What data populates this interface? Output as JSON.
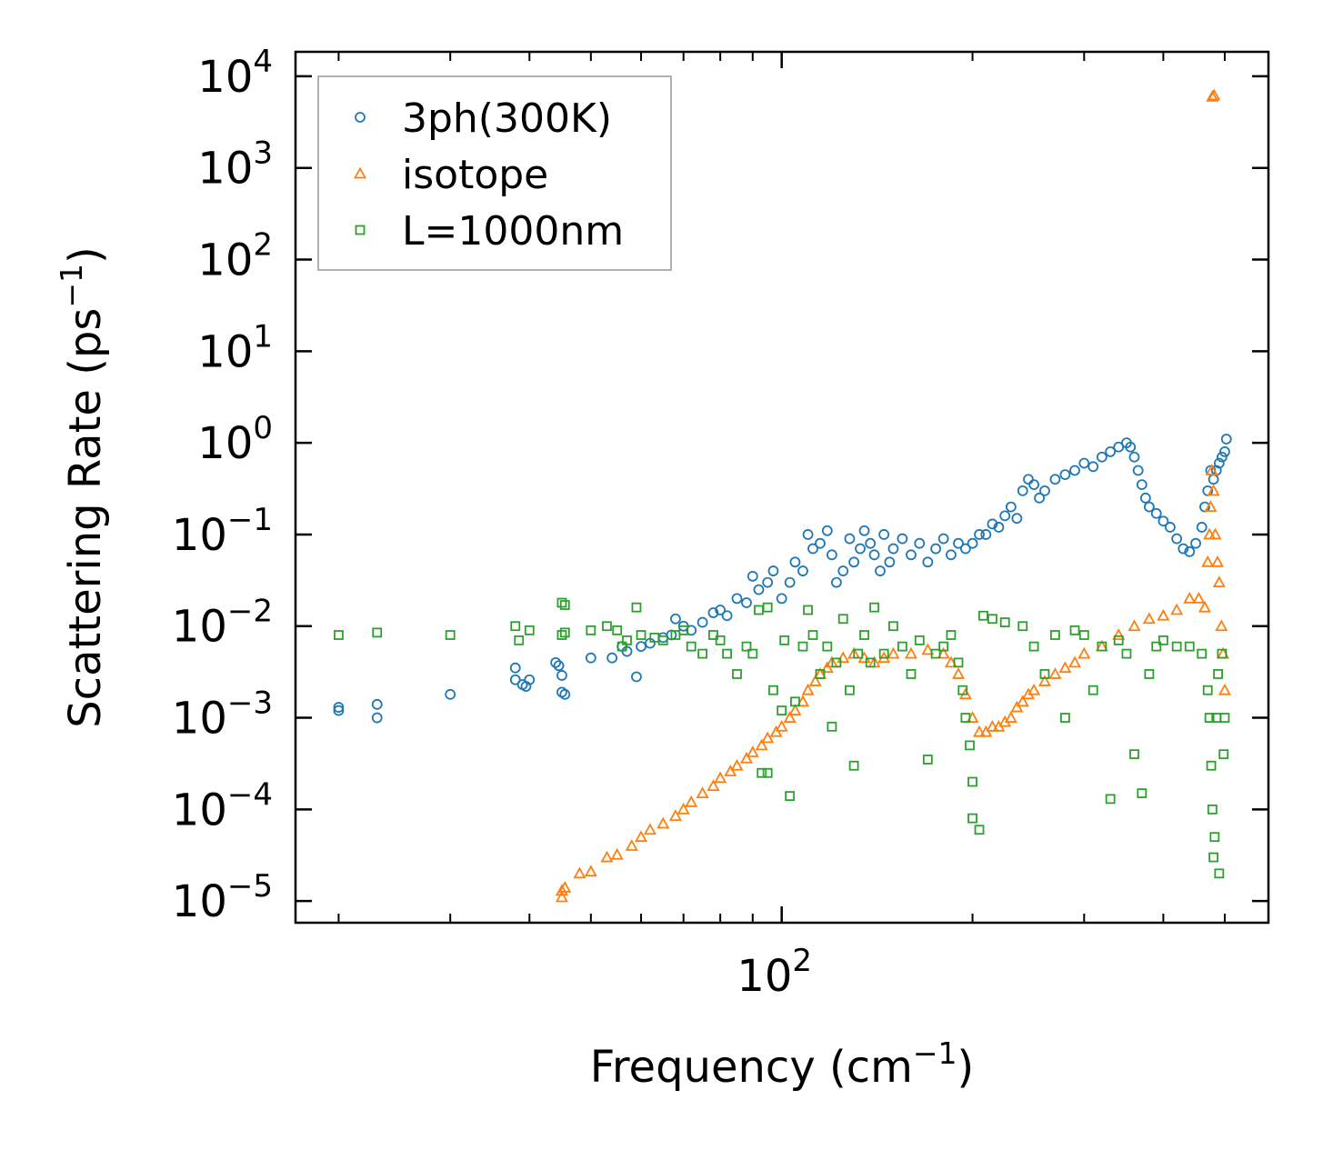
{
  "chart_data": {
    "type": "scatter",
    "xscale": "log",
    "yscale": "log",
    "xlabel": "Frequency (cm",
    "xlabel_sup": "−1",
    "xlabel_end": ")",
    "ylabel": "Scattering Rate (ps",
    "ylabel_sup": "−1",
    "ylabel_end": ")",
    "xlim": [
      17.1,
      586
    ],
    "ylim": [
      5.8e-06,
      18500
    ],
    "x_major_ticks": [
      {
        "value": 100,
        "base": "10",
        "exp": "2"
      }
    ],
    "x_minor_ticks": [
      20,
      30,
      40,
      50,
      60,
      70,
      80,
      90,
      200,
      300,
      400,
      500
    ],
    "y_major_ticks": [
      {
        "value": 10000.0,
        "base": "10",
        "exp": "4"
      },
      {
        "value": 1000.0,
        "base": "10",
        "exp": "3"
      },
      {
        "value": 100.0,
        "base": "10",
        "exp": "2"
      },
      {
        "value": 10.0,
        "base": "10",
        "exp": "1"
      },
      {
        "value": 1.0,
        "base": "10",
        "exp": "0"
      },
      {
        "value": 0.1,
        "base": "10",
        "exp": "−1"
      },
      {
        "value": 0.01,
        "base": "10",
        "exp": "−2"
      },
      {
        "value": 0.001,
        "base": "10",
        "exp": "−3"
      },
      {
        "value": 0.0001,
        "base": "10",
        "exp": "−4"
      },
      {
        "value": 1e-05,
        "base": "10",
        "exp": "−5"
      }
    ],
    "legend_position": "top-left",
    "grid": false,
    "series": [
      {
        "name": "3ph(300K)",
        "marker": "circle",
        "color": "#1f77b4",
        "points": [
          [
            20,
            0.0012
          ],
          [
            20,
            0.0013
          ],
          [
            23,
            0.0014
          ],
          [
            23,
            0.001
          ],
          [
            30,
            0.0018
          ],
          [
            38,
            0.0035
          ],
          [
            38,
            0.0026
          ],
          [
            39,
            0.0023
          ],
          [
            39.5,
            0.0022
          ],
          [
            40,
            0.0026
          ],
          [
            44,
            0.004
          ],
          [
            44.5,
            0.0037
          ],
          [
            45,
            0.0029
          ],
          [
            45,
            0.0019
          ],
          [
            45.5,
            0.0018
          ],
          [
            50,
            0.0045
          ],
          [
            54,
            0.0045
          ],
          [
            56,
            0.006
          ],
          [
            57,
            0.0053
          ],
          [
            59,
            0.0028
          ],
          [
            60,
            0.006
          ],
          [
            62,
            0.0065
          ],
          [
            65,
            0.0075
          ],
          [
            67,
            0.008
          ],
          [
            68,
            0.012
          ],
          [
            70,
            0.01
          ],
          [
            72,
            0.009
          ],
          [
            75,
            0.011
          ],
          [
            78,
            0.014
          ],
          [
            80,
            0.015
          ],
          [
            82,
            0.013
          ],
          [
            85,
            0.02
          ],
          [
            88,
            0.018
          ],
          [
            90,
            0.035
          ],
          [
            92,
            0.025
          ],
          [
            95,
            0.03
          ],
          [
            97,
            0.04
          ],
          [
            100,
            0.02
          ],
          [
            103,
            0.03
          ],
          [
            105,
            0.05
          ],
          [
            108,
            0.04
          ],
          [
            110,
            0.1
          ],
          [
            112,
            0.07
          ],
          [
            115,
            0.08
          ],
          [
            118,
            0.11
          ],
          [
            120,
            0.06
          ],
          [
            122,
            0.03
          ],
          [
            125,
            0.04
          ],
          [
            128,
            0.09
          ],
          [
            130,
            0.05
          ],
          [
            133,
            0.07
          ],
          [
            135,
            0.11
          ],
          [
            138,
            0.08
          ],
          [
            140,
            0.06
          ],
          [
            143,
            0.04
          ],
          [
            145,
            0.1
          ],
          [
            148,
            0.05
          ],
          [
            150,
            0.07
          ],
          [
            155,
            0.09
          ],
          [
            160,
            0.06
          ],
          [
            165,
            0.08
          ],
          [
            170,
            0.05
          ],
          [
            175,
            0.07
          ],
          [
            180,
            0.09
          ],
          [
            185,
            0.06
          ],
          [
            190,
            0.08
          ],
          [
            195,
            0.07
          ],
          [
            200,
            0.08
          ],
          [
            205,
            0.1
          ],
          [
            210,
            0.1
          ],
          [
            215,
            0.13
          ],
          [
            220,
            0.12
          ],
          [
            225,
            0.16
          ],
          [
            230,
            0.2
          ],
          [
            235,
            0.15
          ],
          [
            240,
            0.3
          ],
          [
            245,
            0.4
          ],
          [
            250,
            0.35
          ],
          [
            255,
            0.25
          ],
          [
            260,
            0.3
          ],
          [
            270,
            0.4
          ],
          [
            280,
            0.45
          ],
          [
            290,
            0.5
          ],
          [
            300,
            0.6
          ],
          [
            310,
            0.55
          ],
          [
            320,
            0.7
          ],
          [
            330,
            0.8
          ],
          [
            340,
            0.9
          ],
          [
            350,
            1.0
          ],
          [
            355,
            0.9
          ],
          [
            360,
            0.7
          ],
          [
            365,
            0.5
          ],
          [
            370,
            0.35
          ],
          [
            375,
            0.25
          ],
          [
            380,
            0.2
          ],
          [
            390,
            0.17
          ],
          [
            400,
            0.14
          ],
          [
            410,
            0.12
          ],
          [
            420,
            0.09
          ],
          [
            430,
            0.07
          ],
          [
            440,
            0.065
          ],
          [
            450,
            0.08
          ],
          [
            460,
            0.12
          ],
          [
            465,
            0.2
          ],
          [
            470,
            0.3
          ],
          [
            475,
            0.5
          ],
          [
            480,
            0.4
          ],
          [
            485,
            0.5
          ],
          [
            490,
            0.6
          ],
          [
            495,
            0.7
          ],
          [
            500,
            0.8
          ],
          [
            503,
            1.1
          ]
        ]
      },
      {
        "name": "isotope",
        "marker": "triangle",
        "color": "#ff7f0e",
        "points": [
          [
            45,
            1.3e-05
          ],
          [
            45,
            1.1e-05
          ],
          [
            45.5,
            1.4e-05
          ],
          [
            48,
            2e-05
          ],
          [
            50,
            2.1e-05
          ],
          [
            53,
            3e-05
          ],
          [
            55,
            3.2e-05
          ],
          [
            58,
            4e-05
          ],
          [
            60,
            5e-05
          ],
          [
            62,
            6e-05
          ],
          [
            65,
            7e-05
          ],
          [
            68,
            8.5e-05
          ],
          [
            70,
            0.0001
          ],
          [
            72,
            0.00012
          ],
          [
            75,
            0.00015
          ],
          [
            78,
            0.00018
          ],
          [
            80,
            0.00022
          ],
          [
            83,
            0.00026
          ],
          [
            85,
            0.0003
          ],
          [
            88,
            0.00036
          ],
          [
            90,
            0.00042
          ],
          [
            93,
            0.0005
          ],
          [
            95,
            0.0006
          ],
          [
            98,
            0.0007
          ],
          [
            100,
            0.0008
          ],
          [
            103,
            0.001
          ],
          [
            105,
            0.0012
          ],
          [
            108,
            0.0015
          ],
          [
            110,
            0.002
          ],
          [
            113,
            0.0025
          ],
          [
            115,
            0.003
          ],
          [
            118,
            0.0035
          ],
          [
            120,
            0.004
          ],
          [
            125,
            0.0045
          ],
          [
            130,
            0.005
          ],
          [
            135,
            0.0045
          ],
          [
            140,
            0.004
          ],
          [
            145,
            0.0045
          ],
          [
            150,
            0.005
          ],
          [
            160,
            0.005
          ],
          [
            170,
            0.0055
          ],
          [
            180,
            0.005
          ],
          [
            185,
            0.004
          ],
          [
            190,
            0.003
          ],
          [
            195,
            0.0018
          ],
          [
            200,
            0.001
          ],
          [
            205,
            0.0007
          ],
          [
            210,
            0.0007
          ],
          [
            215,
            0.0008
          ],
          [
            220,
            0.0008
          ],
          [
            225,
            0.0009
          ],
          [
            230,
            0.001
          ],
          [
            235,
            0.0013
          ],
          [
            240,
            0.0015
          ],
          [
            245,
            0.0018
          ],
          [
            250,
            0.002
          ],
          [
            260,
            0.0025
          ],
          [
            270,
            0.003
          ],
          [
            280,
            0.0035
          ],
          [
            290,
            0.004
          ],
          [
            300,
            0.005
          ],
          [
            320,
            0.006
          ],
          [
            340,
            0.008
          ],
          [
            360,
            0.01
          ],
          [
            380,
            0.012
          ],
          [
            400,
            0.013
          ],
          [
            420,
            0.015
          ],
          [
            440,
            0.02
          ],
          [
            455,
            0.02
          ],
          [
            465,
            0.016
          ],
          [
            470,
            0.05
          ],
          [
            473,
            0.1
          ],
          [
            475,
            0.2
          ],
          [
            477,
            0.5
          ],
          [
            480,
            0.3
          ],
          [
            483,
            0.1
          ],
          [
            487,
            0.05
          ],
          [
            490,
            0.03
          ],
          [
            494,
            0.01
          ],
          [
            497,
            0.005
          ],
          [
            500,
            0.002
          ],
          [
            478,
            6000
          ],
          [
            481,
            6200
          ]
        ]
      },
      {
        "name": "L=1000nm",
        "marker": "square",
        "color": "#2ca02c",
        "points": [
          [
            20,
            0.008
          ],
          [
            23,
            0.0085
          ],
          [
            30,
            0.008
          ],
          [
            38,
            0.01
          ],
          [
            38.5,
            0.007
          ],
          [
            40,
            0.009
          ],
          [
            45,
            0.018
          ],
          [
            45.5,
            0.017
          ],
          [
            45,
            0.008
          ],
          [
            45.5,
            0.0085
          ],
          [
            50,
            0.009
          ],
          [
            53,
            0.01
          ],
          [
            55,
            0.009
          ],
          [
            56,
            0.006
          ],
          [
            57,
            0.007
          ],
          [
            59,
            0.016
          ],
          [
            60,
            0.008
          ],
          [
            63,
            0.0075
          ],
          [
            65,
            0.007
          ],
          [
            68,
            0.008
          ],
          [
            70,
            0.009
          ],
          [
            72,
            0.006
          ],
          [
            75,
            0.005
          ],
          [
            78,
            0.008
          ],
          [
            80,
            0.007
          ],
          [
            82,
            0.005
          ],
          [
            85,
            0.003
          ],
          [
            88,
            0.006
          ],
          [
            90,
            0.005
          ],
          [
            92,
            0.015
          ],
          [
            93,
            0.00025
          ],
          [
            95,
            0.00025
          ],
          [
            95,
            0.016
          ],
          [
            97,
            0.002
          ],
          [
            100,
            0.0012
          ],
          [
            101,
            0.007
          ],
          [
            103,
            0.00014
          ],
          [
            105,
            0.0015
          ],
          [
            108,
            0.006
          ],
          [
            110,
            0.015
          ],
          [
            112,
            0.008
          ],
          [
            115,
            0.003
          ],
          [
            118,
            0.006
          ],
          [
            120,
            0.0008
          ],
          [
            122,
            0.004
          ],
          [
            125,
            0.012
          ],
          [
            128,
            0.002
          ],
          [
            130,
            0.0003
          ],
          [
            132,
            0.005
          ],
          [
            135,
            0.008
          ],
          [
            138,
            0.004
          ],
          [
            140,
            0.016
          ],
          [
            145,
            0.005
          ],
          [
            150,
            0.01
          ],
          [
            155,
            0.006
          ],
          [
            160,
            0.003
          ],
          [
            165,
            0.007
          ],
          [
            170,
            0.00035
          ],
          [
            175,
            0.005
          ],
          [
            180,
            0.006
          ],
          [
            185,
            0.008
          ],
          [
            190,
            0.004
          ],
          [
            193,
            0.002
          ],
          [
            195,
            0.001
          ],
          [
            198,
            0.0005
          ],
          [
            200,
            0.0002
          ],
          [
            200,
            8e-05
          ],
          [
            205,
            6e-05
          ],
          [
            208,
            0.013
          ],
          [
            215,
            0.012
          ],
          [
            225,
            0.011
          ],
          [
            240,
            0.01
          ],
          [
            250,
            0.006
          ],
          [
            260,
            0.003
          ],
          [
            270,
            0.008
          ],
          [
            280,
            0.001
          ],
          [
            290,
            0.009
          ],
          [
            300,
            0.008
          ],
          [
            310,
            0.002
          ],
          [
            320,
            0.006
          ],
          [
            330,
            0.00013
          ],
          [
            340,
            0.007
          ],
          [
            350,
            0.005
          ],
          [
            360,
            0.0004
          ],
          [
            370,
            0.00015
          ],
          [
            380,
            0.003
          ],
          [
            390,
            0.006
          ],
          [
            400,
            0.007
          ],
          [
            420,
            0.006
          ],
          [
            440,
            0.006
          ],
          [
            460,
            0.005
          ],
          [
            470,
            0.002
          ],
          [
            473,
            0.001
          ],
          [
            476,
            0.0003
          ],
          [
            478,
            0.0001
          ],
          [
            480,
            3e-05
          ],
          [
            482,
            5e-05
          ],
          [
            485,
            0.001
          ],
          [
            488,
            0.003
          ],
          [
            490,
            2e-05
          ],
          [
            495,
            0.005
          ],
          [
            498,
            0.0004
          ],
          [
            500,
            0.001
          ]
        ]
      }
    ]
  }
}
